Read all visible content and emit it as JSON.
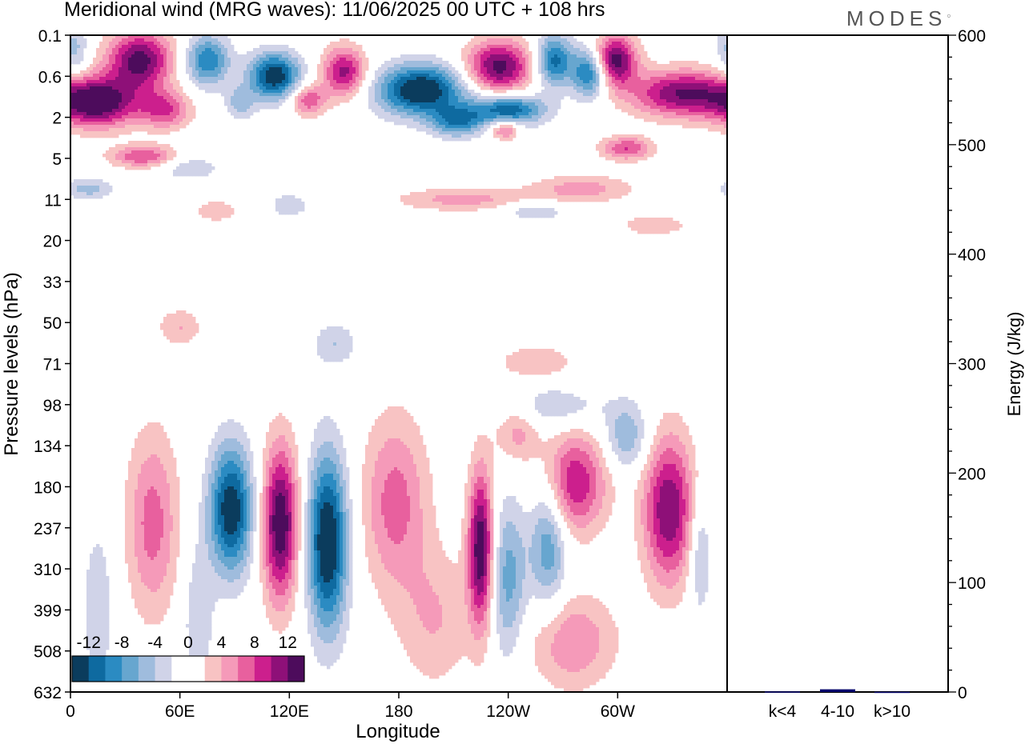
{
  "title": "Meridional wind (MRG waves):  11/06/2025  00 UTC  + 108 hrs",
  "logo": "MODES",
  "chart_data": [
    {
      "type": "heatmap",
      "xlabel": "Longitude",
      "ylabel": "Pressure levels (hPa)",
      "x_ticks": [
        "0",
        "60E",
        "120E",
        "180",
        "120W",
        "60W"
      ],
      "x_tick_degrees": [
        0,
        60,
        120,
        180,
        240,
        300
      ],
      "xlim": [
        0,
        360
      ],
      "y_ticks": [
        "0.1",
        "0.6",
        "2",
        "5",
        "11",
        "20",
        "33",
        "50",
        "71",
        "98",
        "134",
        "180",
        "237",
        "310",
        "399",
        "508",
        "632"
      ],
      "colorbar": {
        "labels": [
          "-12",
          "-8",
          "-4",
          "0",
          "4",
          "8",
          "12"
        ],
        "colors": [
          "#0b3c5d",
          "#0e6aa0",
          "#2b8bc2",
          "#67a6cf",
          "#9fbcdd",
          "#d0d3e8",
          "#ffffff",
          "#ffffff",
          "#f8c3c3",
          "#f59ab9",
          "#e8609e",
          "#cc1f8d",
          "#8e1078",
          "#4d0c5c"
        ]
      },
      "features": [
        {
          "lon": 15,
          "lev": 1.3,
          "wlon": 22,
          "wlev": 1.2,
          "v": 14
        },
        {
          "lon": 38,
          "lev": 0.3,
          "wlon": 18,
          "wlev": 0.6,
          "v": 13
        },
        {
          "lon": 52,
          "lev": 1.6,
          "wlon": 14,
          "wlev": 1.0,
          "v": 8
        },
        {
          "lon": 2,
          "lev": 0.2,
          "wlon": 8,
          "wlev": 0.5,
          "v": -5
        },
        {
          "lon": 75,
          "lev": 0.3,
          "wlon": 12,
          "wlev": 0.5,
          "v": -10
        },
        {
          "lon": 112,
          "lev": 0.6,
          "wlon": 14,
          "wlev": 0.6,
          "v": -14
        },
        {
          "lon": 93,
          "lev": 1.3,
          "wlon": 8,
          "wlev": 0.8,
          "v": -5
        },
        {
          "lon": 130,
          "lev": 1.2,
          "wlon": 10,
          "wlev": 0.7,
          "v": 8
        },
        {
          "lon": 150,
          "lev": 0.5,
          "wlon": 12,
          "wlev": 0.6,
          "v": 11
        },
        {
          "lon": 192,
          "lev": 0.9,
          "wlon": 24,
          "wlev": 1.0,
          "v": -15
        },
        {
          "lon": 212,
          "lev": 2.2,
          "wlon": 14,
          "wlev": 0.9,
          "v": -9
        },
        {
          "lon": 240,
          "lev": 1.6,
          "wlon": 20,
          "wlev": 0.8,
          "v": -12
        },
        {
          "lon": 235,
          "lev": 0.4,
          "wlon": 18,
          "wlev": 0.6,
          "v": 13
        },
        {
          "lon": 265,
          "lev": 0.3,
          "wlon": 10,
          "wlev": 0.5,
          "v": -11
        },
        {
          "lon": 285,
          "lev": 0.5,
          "wlon": 10,
          "wlev": 0.6,
          "v": -12
        },
        {
          "lon": 298,
          "lev": 0.3,
          "wlon": 12,
          "wlev": 0.5,
          "v": 14
        },
        {
          "lon": 335,
          "lev": 1.0,
          "wlon": 28,
          "wlev": 1.0,
          "v": 12
        },
        {
          "lon": 238,
          "lev": 2.6,
          "wlon": 8,
          "wlev": 0.6,
          "v": 8
        },
        {
          "lon": 305,
          "lev": 4.0,
          "wlon": 14,
          "wlev": 1.2,
          "v": 8
        },
        {
          "lon": 40,
          "lev": 4.8,
          "wlon": 18,
          "wlev": 1.2,
          "v": 8
        },
        {
          "lon": 215,
          "lev": 11,
          "wlon": 36,
          "wlev": 2.0,
          "v": 5
        },
        {
          "lon": 280,
          "lev": 9,
          "wlon": 28,
          "wlev": 2.6,
          "v": 5
        },
        {
          "lon": 320,
          "lev": 16,
          "wlon": 18,
          "wlev": 2.0,
          "v": 4
        },
        {
          "lon": 10,
          "lev": 9,
          "wlon": 14,
          "wlev": 1.6,
          "v": -5
        },
        {
          "lon": 65,
          "lev": 6,
          "wlon": 16,
          "wlev": 1.5,
          "v": -4
        },
        {
          "lon": 120,
          "lev": 12,
          "wlon": 10,
          "wlev": 2.2,
          "v": -4
        },
        {
          "lon": 80,
          "lev": 13,
          "wlon": 12,
          "wlev": 1.4,
          "v": 4
        },
        {
          "lon": 255,
          "lev": 13,
          "wlon": 18,
          "wlev": 1.5,
          "v": -4
        },
        {
          "lon": 60,
          "lev": 52,
          "wlon": 12,
          "wlev": 9,
          "v": 4
        },
        {
          "lon": 145,
          "lev": 60,
          "wlon": 12,
          "wlev": 12,
          "v": -4
        },
        {
          "lon": 255,
          "lev": 70,
          "wlon": 20,
          "wlev": 10,
          "v": 4
        },
        {
          "lon": 45,
          "lev": 230,
          "wlon": 14,
          "wlev": 180,
          "v": 7
        },
        {
          "lon": 88,
          "lev": 210,
          "wlon": 12,
          "wlev": 110,
          "v": -14
        },
        {
          "lon": 115,
          "lev": 230,
          "wlon": 10,
          "wlev": 150,
          "v": 14
        },
        {
          "lon": 141,
          "lev": 260,
          "wlon": 11,
          "wlev": 190,
          "v": -15
        },
        {
          "lon": 178,
          "lev": 200,
          "wlon": 18,
          "wlev": 150,
          "v": 7
        },
        {
          "lon": 225,
          "lev": 270,
          "wlon": 7,
          "wlev": 170,
          "v": 14
        },
        {
          "lon": 240,
          "lev": 330,
          "wlon": 10,
          "wlev": 200,
          "v": -7
        },
        {
          "lon": 262,
          "lev": 260,
          "wlon": 10,
          "wlev": 140,
          "v": -8
        },
        {
          "lon": 276,
          "lev": 175,
          "wlon": 18,
          "wlev": 70,
          "v": 10
        },
        {
          "lon": 245,
          "lev": 120,
          "wlon": 12,
          "wlev": 30,
          "v": 5
        },
        {
          "lon": 305,
          "lev": 125,
          "wlon": 12,
          "wlev": 35,
          "v": -6
        },
        {
          "lon": 328,
          "lev": 210,
          "wlon": 14,
          "wlev": 130,
          "v": 12
        },
        {
          "lon": 345,
          "lev": 280,
          "wlon": 6,
          "wlev": 130,
          "v": -5
        },
        {
          "lon": 275,
          "lev": 480,
          "wlon": 24,
          "wlev": 140,
          "v": 6
        },
        {
          "lon": 200,
          "lev": 420,
          "wlon": 20,
          "wlev": 200,
          "v": 4
        },
        {
          "lon": 265,
          "lev": 100,
          "wlon": 28,
          "wlev": 18,
          "v": -4
        },
        {
          "lon": 70,
          "lev": 420,
          "wlon": 8,
          "wlev": 220,
          "v": -4
        },
        {
          "lon": 15,
          "lev": 400,
          "wlon": 8,
          "wlev": 260,
          "v": -4
        }
      ]
    },
    {
      "type": "bar",
      "ylabel": "Energy (J/kg)",
      "ylim": [
        0,
        600
      ],
      "y_ticks": [
        "0",
        "100",
        "200",
        "300",
        "400",
        "500",
        "600"
      ],
      "categories": [
        "k<4",
        "4-10",
        "k>10"
      ],
      "values": [
        0.5,
        2.5,
        0.2
      ],
      "bar_colors": [
        "#0a0a6e",
        "#0a0a6e",
        "#0a0a6e"
      ]
    }
  ]
}
